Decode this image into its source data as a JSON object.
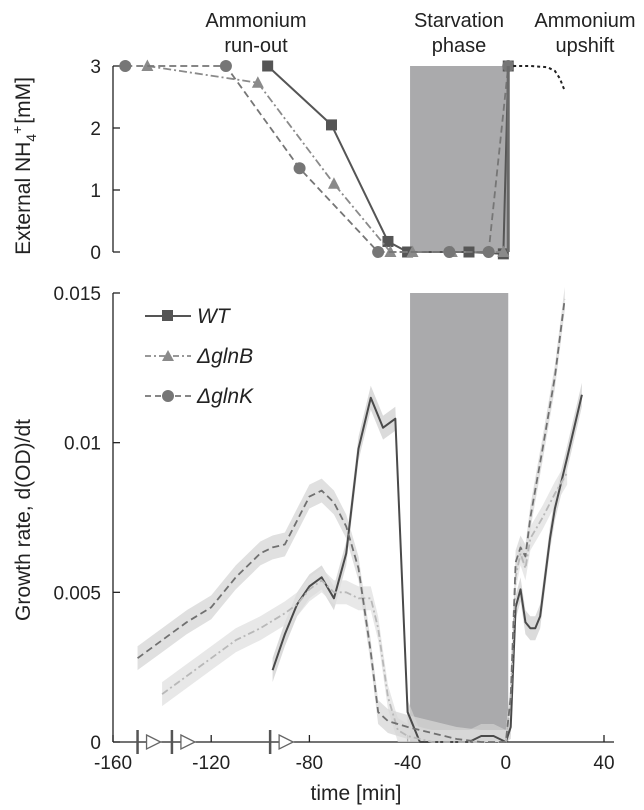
{
  "chart_data": [
    {
      "type": "line",
      "ylabel": "External NH4+ [mM]",
      "ylabel_parts": {
        "pre": "External NH",
        "sub": "4",
        "sup": "+",
        "post": "[mM]"
      },
      "ylim": [
        0,
        3
      ],
      "yticks": [
        "0",
        "1",
        "2",
        "3"
      ],
      "xlim": [
        -160,
        40
      ],
      "annotations": [
        {
          "lines": [
            "Ammonium",
            "run-out"
          ]
        },
        {
          "lines": [
            "Starvation",
            "phase"
          ]
        },
        {
          "lines": [
            "Ammonium",
            "upshift"
          ]
        }
      ],
      "shaded_region": {
        "x": [
          -39,
          1
        ]
      },
      "series": [
        {
          "name": "WT",
          "x": [
            -97,
            -71,
            -48,
            -40,
            -15,
            -1,
            1
          ],
          "y": [
            3.0,
            2.05,
            0.17,
            0.0,
            0.0,
            -0.03,
            3.0
          ]
        },
        {
          "name": "ΔglnB",
          "x": [
            -146,
            -101,
            -70,
            -47,
            -38,
            -22,
            -1
          ],
          "y": [
            3.0,
            2.73,
            1.1,
            0.0,
            0.0,
            0.0,
            0.0
          ]
        },
        {
          "name": "ΔglnK",
          "x": [
            -155,
            -114,
            -84,
            -52,
            -23,
            -7,
            1
          ],
          "y": [
            3.0,
            3.0,
            1.35,
            0.0,
            0.0,
            0.0,
            3.0
          ]
        },
        {
          "name": "upshift",
          "x": [
            3,
            10,
            17,
            20,
            22,
            24
          ],
          "y": [
            3.0,
            3.0,
            2.98,
            2.92,
            2.8,
            2.6
          ]
        }
      ]
    },
    {
      "type": "line",
      "xlabel": "time [min]",
      "ylabel": "Growth rate, d(OD)/dt",
      "xlim": [
        -160,
        40
      ],
      "ylim": [
        0,
        0.015
      ],
      "xticks": [
        "-160",
        "-120",
        "-80",
        "-40",
        "0",
        "40"
      ],
      "yticks": [
        "0",
        "0.005",
        "0.01",
        "0.015"
      ],
      "legend": [
        "WT",
        "ΔglnB",
        "ΔglnK"
      ],
      "legend_position": "top-left",
      "series": [
        {
          "name": "WT",
          "x": [
            -95,
            -90,
            -85,
            -80,
            -75,
            -70,
            -65,
            -60,
            -55,
            -50,
            -45,
            -40,
            -35,
            -30,
            -25,
            -20,
            -15,
            -10,
            -5,
            0,
            2,
            4,
            6,
            8,
            10,
            12,
            14,
            16,
            18,
            20,
            25,
            31
          ],
          "y": [
            0.0024,
            0.0036,
            0.0046,
            0.0052,
            0.0055,
            0.0048,
            0.0063,
            0.0098,
            0.0115,
            0.0105,
            0.0108,
            0.001,
            0.0,
            0.0,
            0.0,
            0.0,
            0.0,
            0.0002,
            0.0002,
            0.0,
            0.0005,
            0.0045,
            0.0051,
            0.004,
            0.0038,
            0.0038,
            0.0042,
            0.0055,
            0.0068,
            0.0078,
            0.0095,
            0.0116
          ]
        },
        {
          "name": "ΔglnB",
          "x": [
            -140,
            -130,
            -120,
            -110,
            -100,
            -90,
            -85,
            -80,
            -75,
            -70,
            -65,
            -60,
            -55,
            -52,
            -48,
            -44,
            -40,
            -35,
            -30,
            -20,
            -10,
            0,
            2,
            4,
            6,
            8,
            10,
            15,
            20,
            25
          ],
          "y": [
            0.0016,
            0.0022,
            0.0028,
            0.0034,
            0.0038,
            0.0043,
            0.0046,
            0.0051,
            0.0054,
            0.005,
            0.005,
            0.0048,
            0.0048,
            0.0038,
            0.0015,
            0.0004,
            0.0002,
            0.0001,
            0.0,
            0.0,
            0.0,
            0.0,
            0.0015,
            0.0055,
            0.0063,
            0.0058,
            0.0068,
            0.0075,
            0.0083,
            0.009
          ]
        },
        {
          "name": "ΔglnK",
          "x": [
            -150,
            -140,
            -130,
            -120,
            -110,
            -100,
            -95,
            -90,
            -85,
            -80,
            -75,
            -70,
            -65,
            -60,
            -55,
            -52,
            -48,
            -44,
            -40,
            -35,
            -30,
            -20,
            -10,
            0,
            2,
            4,
            6,
            8,
            10,
            15,
            20,
            24
          ],
          "y": [
            0.0028,
            0.0034,
            0.004,
            0.0045,
            0.0055,
            0.0063,
            0.0065,
            0.0066,
            0.0074,
            0.0082,
            0.0084,
            0.008,
            0.0072,
            0.0058,
            0.003,
            0.001,
            0.0007,
            0.0006,
            0.0005,
            0.0004,
            0.0003,
            0.0001,
            0.0,
            0.0,
            0.0015,
            0.006,
            0.0065,
            0.0062,
            0.0075,
            0.0098,
            0.0122,
            0.0148
          ]
        }
      ],
      "markers": [
        {
          "x": -150
        },
        {
          "x": -136
        },
        {
          "x": -96
        }
      ]
    }
  ],
  "colors": {
    "WT": "#555555",
    "ΔglnB": "#8a8a8a",
    "ΔglnK": "#767676",
    "shade": "#a9a9ab",
    "axis": "#222222"
  }
}
